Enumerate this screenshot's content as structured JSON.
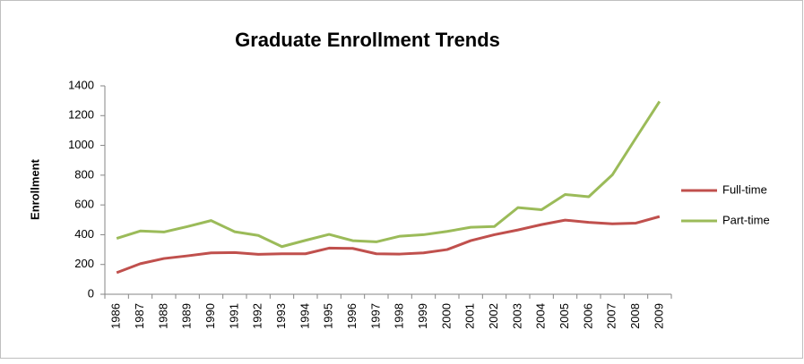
{
  "chart_data": {
    "type": "line",
    "title": "Graduate Enrollment Trends",
    "y_label": "Enrollment",
    "categories": [
      "1986",
      "1987",
      "1988",
      "1989",
      "1990",
      "1991",
      "1992",
      "1993",
      "1994",
      "1995",
      "1996",
      "1997",
      "1998",
      "1999",
      "2000",
      "2001",
      "2002",
      "2003",
      "2004",
      "2005",
      "2006",
      "2007",
      "2008",
      "2009"
    ],
    "series": [
      {
        "name": "Full-time",
        "color": "#c0504d",
        "values": [
          145,
          205,
          240,
          258,
          278,
          280,
          268,
          272,
          272,
          310,
          308,
          272,
          270,
          278,
          300,
          360,
          400,
          432,
          468,
          498,
          483,
          473,
          478,
          522
        ]
      },
      {
        "name": "Part-time",
        "color": "#9bbb59",
        "values": [
          375,
          425,
          418,
          455,
          495,
          420,
          395,
          320,
          362,
          402,
          360,
          352,
          390,
          400,
          422,
          450,
          455,
          582,
          568,
          670,
          655,
          802,
          1050,
          1295
        ]
      }
    ],
    "ylim": [
      0,
      1400
    ],
    "yticks": [
      0,
      200,
      400,
      600,
      800,
      1000,
      1200,
      1400
    ],
    "grid": false,
    "legend": "right"
  }
}
